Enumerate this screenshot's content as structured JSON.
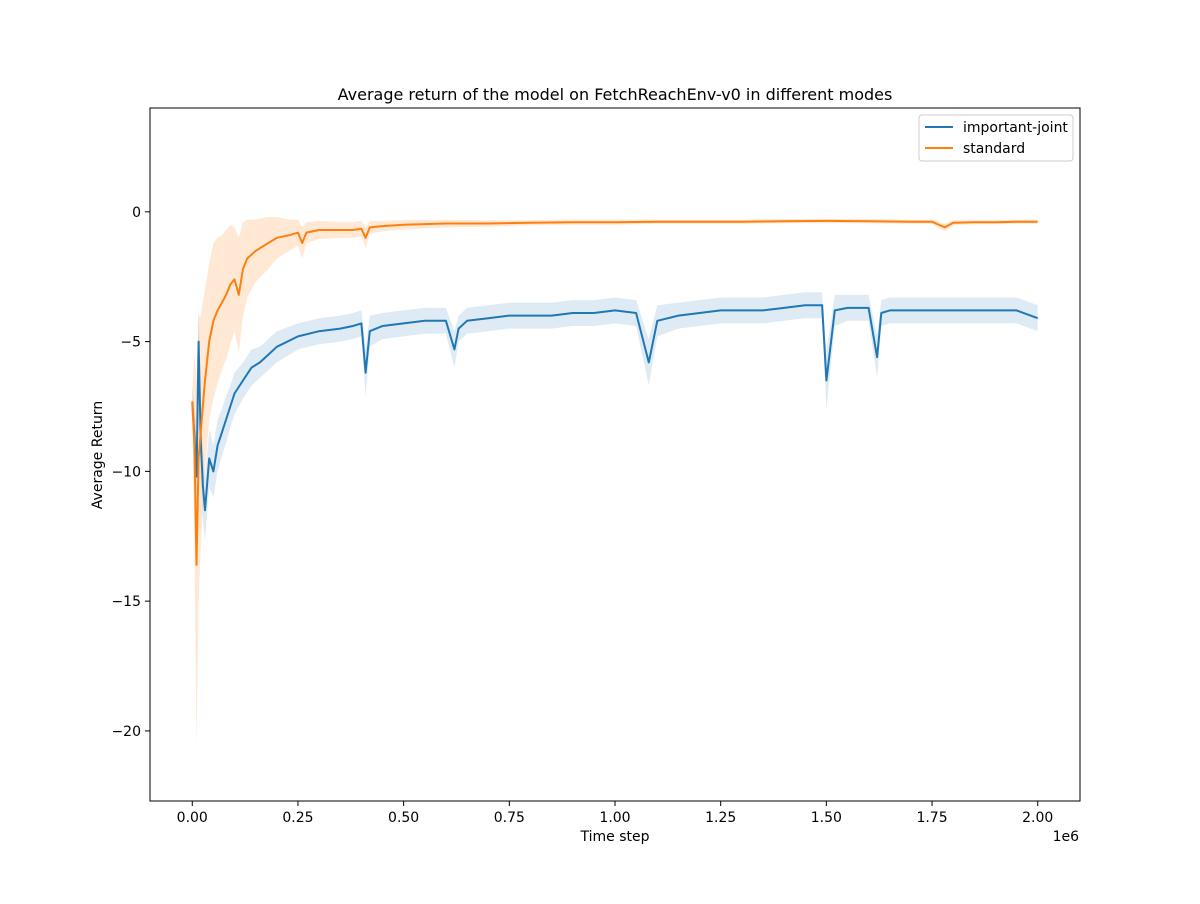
{
  "chart_data": {
    "type": "line",
    "title": "Average return of the model on FetchReachEnv-v0 in different modes",
    "xlabel": "Time step",
    "ylabel": "Average Return",
    "x_offset_label": "1e6",
    "xlim": [
      -0.1,
      2.1
    ],
    "ylim": [
      -22.7,
      4.0
    ],
    "x_ticks": [
      0.0,
      0.25,
      0.5,
      0.75,
      1.0,
      1.25,
      1.5,
      1.75,
      2.0
    ],
    "x_tick_labels": [
      "0.00",
      "0.25",
      "0.50",
      "0.75",
      "1.00",
      "1.25",
      "1.50",
      "1.75",
      "2.00"
    ],
    "y_ticks": [
      0,
      -5,
      -10,
      -15,
      -20
    ],
    "y_tick_labels": [
      "0",
      "−5",
      "−10",
      "−15",
      "−20"
    ],
    "grid": false,
    "legend_position": "top-right",
    "series": [
      {
        "name": "important-joint",
        "color": "#1f77b4",
        "band_color": "#1f77b4",
        "x": [
          0.0,
          0.005,
          0.01,
          0.015,
          0.02,
          0.025,
          0.03,
          0.04,
          0.05,
          0.06,
          0.07,
          0.08,
          0.09,
          0.1,
          0.12,
          0.14,
          0.16,
          0.18,
          0.2,
          0.25,
          0.3,
          0.35,
          0.38,
          0.4,
          0.41,
          0.42,
          0.45,
          0.5,
          0.55,
          0.6,
          0.62,
          0.63,
          0.65,
          0.7,
          0.75,
          0.8,
          0.85,
          0.9,
          0.95,
          1.0,
          1.05,
          1.08,
          1.1,
          1.15,
          1.2,
          1.25,
          1.3,
          1.35,
          1.4,
          1.45,
          1.49,
          1.5,
          1.52,
          1.55,
          1.6,
          1.62,
          1.63,
          1.65,
          1.7,
          1.75,
          1.8,
          1.85,
          1.9,
          1.95,
          2.0
        ],
        "values": [
          -7.4,
          -8.6,
          -10.2,
          -5.0,
          -8.8,
          -10.5,
          -11.5,
          -9.5,
          -10.0,
          -9.0,
          -8.5,
          -8.0,
          -7.5,
          -7.0,
          -6.5,
          -6.0,
          -5.8,
          -5.5,
          -5.2,
          -4.8,
          -4.6,
          -4.5,
          -4.4,
          -4.3,
          -6.2,
          -4.6,
          -4.4,
          -4.3,
          -4.2,
          -4.2,
          -5.3,
          -4.5,
          -4.2,
          -4.1,
          -4.0,
          -4.0,
          -4.0,
          -3.9,
          -3.9,
          -3.8,
          -3.9,
          -5.8,
          -4.2,
          -4.0,
          -3.9,
          -3.8,
          -3.8,
          -3.8,
          -3.7,
          -3.6,
          -3.6,
          -6.5,
          -3.8,
          -3.7,
          -3.7,
          -5.6,
          -3.9,
          -3.8,
          -3.8,
          -3.8,
          -3.8,
          -3.8,
          -3.8,
          -3.8,
          -4.1
        ],
        "band_halfwidth": [
          0.6,
          1.2,
          1.5,
          1.5,
          1.4,
          1.3,
          1.2,
          1.1,
          1.0,
          1.0,
          0.9,
          0.9,
          0.8,
          0.8,
          0.7,
          0.7,
          0.6,
          0.6,
          0.6,
          0.5,
          0.5,
          0.5,
          0.5,
          0.5,
          0.9,
          0.6,
          0.5,
          0.5,
          0.5,
          0.5,
          0.7,
          0.5,
          0.5,
          0.5,
          0.5,
          0.5,
          0.5,
          0.5,
          0.5,
          0.5,
          0.5,
          0.9,
          0.6,
          0.5,
          0.5,
          0.5,
          0.5,
          0.5,
          0.5,
          0.5,
          0.5,
          1.1,
          0.6,
          0.5,
          0.5,
          0.8,
          0.5,
          0.5,
          0.5,
          0.5,
          0.5,
          0.5,
          0.5,
          0.5,
          0.5
        ]
      },
      {
        "name": "standard",
        "color": "#ff7f0e",
        "band_color": "#ff7f0e",
        "x": [
          0.0,
          0.005,
          0.01,
          0.015,
          0.02,
          0.025,
          0.03,
          0.04,
          0.05,
          0.06,
          0.07,
          0.08,
          0.09,
          0.1,
          0.11,
          0.12,
          0.13,
          0.15,
          0.18,
          0.2,
          0.23,
          0.25,
          0.26,
          0.27,
          0.3,
          0.35,
          0.38,
          0.4,
          0.41,
          0.42,
          0.45,
          0.5,
          0.6,
          0.7,
          0.8,
          0.9,
          1.0,
          1.1,
          1.2,
          1.3,
          1.4,
          1.5,
          1.6,
          1.7,
          1.75,
          1.78,
          1.8,
          1.85,
          1.9,
          1.95,
          2.0
        ],
        "values": [
          -7.3,
          -9.0,
          -13.6,
          -9.5,
          -8.5,
          -7.5,
          -6.5,
          -5.0,
          -4.2,
          -3.8,
          -3.5,
          -3.2,
          -2.8,
          -2.6,
          -3.2,
          -2.2,
          -1.8,
          -1.5,
          -1.2,
          -1.0,
          -0.9,
          -0.8,
          -1.2,
          -0.8,
          -0.7,
          -0.7,
          -0.7,
          -0.65,
          -1.0,
          -0.6,
          -0.55,
          -0.5,
          -0.45,
          -0.45,
          -0.42,
          -0.4,
          -0.4,
          -0.38,
          -0.38,
          -0.38,
          -0.36,
          -0.35,
          -0.36,
          -0.38,
          -0.38,
          -0.6,
          -0.42,
          -0.4,
          -0.4,
          -0.38,
          -0.38
        ],
        "band_halfwidth": [
          0.5,
          3.5,
          7.0,
          5.5,
          4.5,
          4.0,
          3.5,
          3.0,
          3.0,
          2.8,
          2.6,
          2.5,
          2.3,
          2.0,
          2.2,
          1.8,
          1.5,
          1.2,
          1.0,
          0.8,
          0.6,
          0.5,
          0.6,
          0.4,
          0.35,
          0.3,
          0.3,
          0.3,
          0.4,
          0.25,
          0.2,
          0.18,
          0.15,
          0.12,
          0.1,
          0.1,
          0.1,
          0.08,
          0.08,
          0.08,
          0.08,
          0.08,
          0.08,
          0.08,
          0.08,
          0.15,
          0.1,
          0.08,
          0.08,
          0.08,
          0.08
        ]
      }
    ]
  }
}
